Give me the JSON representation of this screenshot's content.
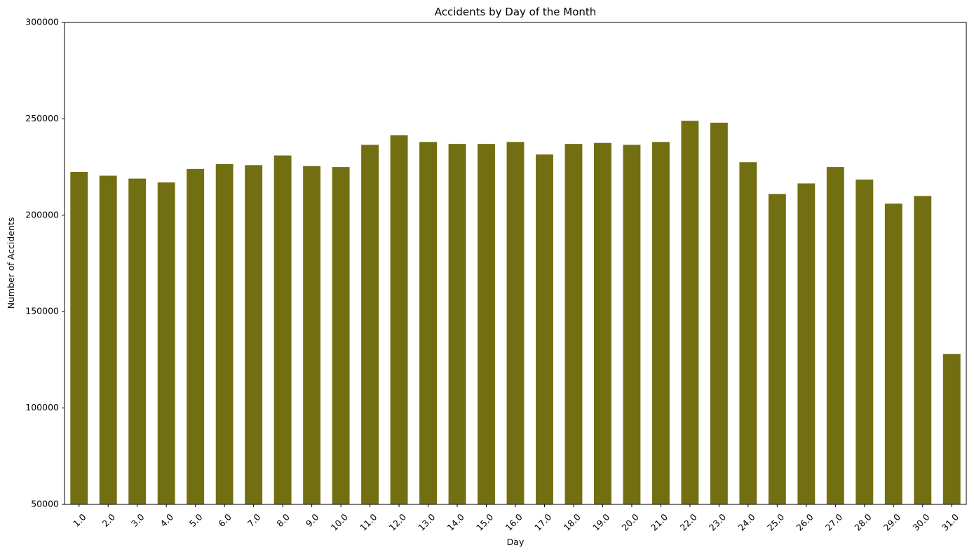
{
  "chart_data": {
    "type": "bar",
    "title": "Accidents by Day of the Month",
    "xlabel": "Day",
    "ylabel": "Number of Accidents",
    "ylim": [
      50000,
      300000
    ],
    "yticks": [
      "50000",
      "100000",
      "150000",
      "200000",
      "250000",
      "300000"
    ],
    "ytick_values": [
      50000,
      100000,
      150000,
      200000,
      250000,
      300000
    ],
    "categories": [
      "1.0",
      "2.0",
      "3.0",
      "4.0",
      "5.0",
      "6.0",
      "7.0",
      "8.0",
      "9.0",
      "10.0",
      "11.0",
      "12.0",
      "13.0",
      "14.0",
      "15.0",
      "16.0",
      "17.0",
      "18.0",
      "19.0",
      "20.0",
      "21.0",
      "22.0",
      "23.0",
      "24.0",
      "25.0",
      "26.0",
      "27.0",
      "28.0",
      "29.0",
      "30.0",
      "31.0"
    ],
    "values": [
      222500,
      220500,
      219000,
      217000,
      224000,
      226500,
      226000,
      231000,
      225500,
      225000,
      236500,
      241500,
      238000,
      237000,
      237000,
      238000,
      231500,
      237000,
      237500,
      236500,
      238000,
      249000,
      248000,
      227500,
      211000,
      216500,
      225000,
      218500,
      206000,
      210000,
      128000
    ],
    "bar_color": "#726f13",
    "grid": false,
    "legend": "none"
  }
}
